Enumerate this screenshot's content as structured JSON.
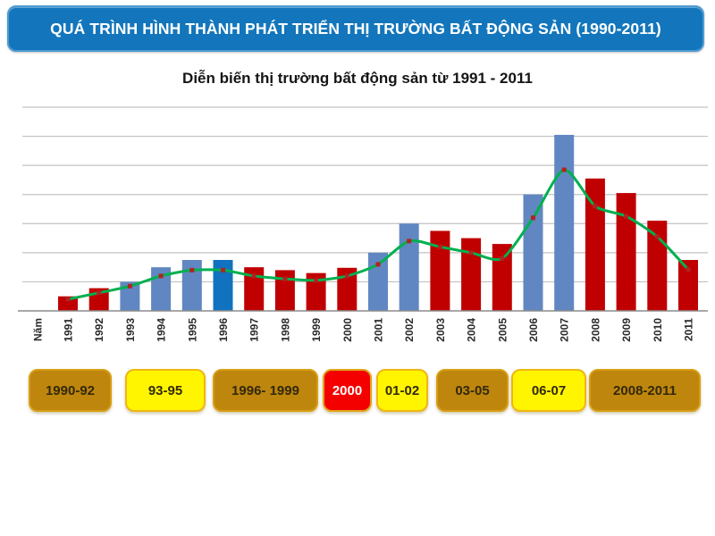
{
  "header": {
    "title": "QUÁ TRÌNH HÌNH THÀNH PHÁT TRIỂN THỊ TRƯỜNG BẤT ĐỘNG SẢN (1990-2011)"
  },
  "colors": {
    "header_bg": "#1376BC",
    "bar_red": "#C00000",
    "bar_steel_blue": "#6187C2",
    "bar_bright_blue": "#1173BF",
    "trend_green": "#00B050",
    "marker_red": "#B22222",
    "gridline_gray": "#C2C2C2",
    "axis_gray": "#8C8C8C",
    "period_brown": "#BE860D",
    "period_yellow": "#FFF500",
    "period_red": "#F50000",
    "period_border_gold": "#DFA51A"
  },
  "chart_data": {
    "type": "bar",
    "title": "Diễn biến thị trường bất động sản từ 1991 - 2011",
    "x_axis_label": "Năm",
    "categories": [
      "1991",
      "1992",
      "1993",
      "1994",
      "1995",
      "1996",
      "1997",
      "1998",
      "1999",
      "2000",
      "2001",
      "2002",
      "2003",
      "2004",
      "2005",
      "2006",
      "2007",
      "2008",
      "2009",
      "2010",
      "2011"
    ],
    "series": [
      {
        "name": "market-level-bars",
        "type": "bar",
        "values": [
          0.5,
          0.78,
          1.0,
          1.5,
          1.75,
          1.75,
          1.5,
          1.4,
          1.3,
          1.48,
          2.0,
          3.0,
          2.75,
          2.5,
          2.3,
          4.0,
          6.05,
          4.55,
          4.05,
          3.1,
          1.75
        ]
      },
      {
        "name": "trend-line",
        "type": "line",
        "values": [
          0.4,
          0.62,
          0.85,
          1.2,
          1.4,
          1.4,
          1.2,
          1.1,
          1.05,
          1.2,
          1.6,
          2.4,
          2.2,
          2.0,
          1.8,
          3.2,
          4.85,
          3.6,
          3.25,
          2.55,
          1.42
        ]
      }
    ],
    "bar_color_roles": [
      "red",
      "red",
      "steel",
      "steel",
      "steel",
      "blue",
      "red",
      "red",
      "red",
      "red",
      "steel",
      "steel",
      "red",
      "red",
      "red",
      "steel",
      "steel",
      "red",
      "red",
      "red",
      "red"
    ],
    "ylim": [
      0,
      7
    ],
    "gridlines": true,
    "y_tick_labels": [],
    "legend": "none"
  },
  "periods": [
    {
      "label": "1990-92",
      "variant": "brown"
    },
    {
      "label": "93-95",
      "variant": "yellow"
    },
    {
      "label": "1996- 1999",
      "variant": "brown"
    },
    {
      "label": "2000",
      "variant": "red"
    },
    {
      "label": "01-02",
      "variant": "yellow"
    },
    {
      "label": "03-05",
      "variant": "brown"
    },
    {
      "label": "06-07",
      "variant": "yellow"
    },
    {
      "label": "2008-2011",
      "variant": "brown"
    }
  ]
}
